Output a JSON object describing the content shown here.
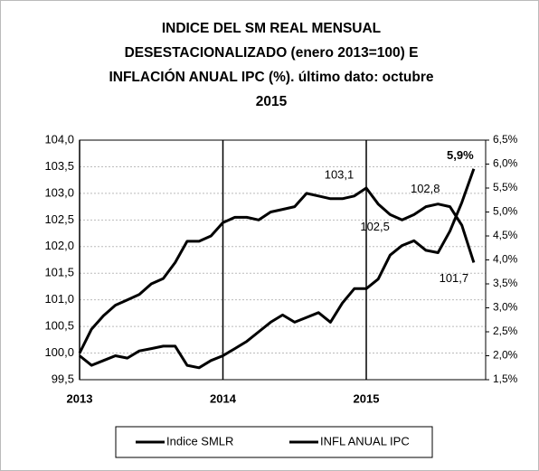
{
  "chart_data": {
    "type": "line",
    "title": [
      "INDICE DEL SM REAL MENSUAL",
      "DESESTACIONALIZADO (enero 2013=100) E",
      "INFLACIÓN ANUAL IPC (%). último dato: octubre",
      "2015"
    ],
    "categories": [
      "2013",
      null,
      null,
      null,
      null,
      null,
      null,
      null,
      null,
      null,
      null,
      null,
      "2014",
      null,
      null,
      null,
      null,
      null,
      null,
      null,
      null,
      null,
      null,
      null,
      "2015",
      null,
      null,
      null,
      null,
      null,
      null,
      null,
      null,
      null
    ],
    "series": [
      {
        "name": "Indice SMLR",
        "color": "#000000",
        "values": [
          100.0,
          100.45,
          100.7,
          100.9,
          101.0,
          101.1,
          101.3,
          101.4,
          101.7,
          102.1,
          102.1,
          102.2,
          102.45,
          102.55,
          102.55,
          102.5,
          102.65,
          102.7,
          102.75,
          103.0,
          102.95,
          102.9,
          102.9,
          102.95,
          103.1,
          102.8,
          102.6,
          102.5,
          102.6,
          102.75,
          102.8,
          102.75,
          102.4,
          101.7
        ],
        "value_labels": [
          null,
          null,
          null,
          null,
          null,
          null,
          null,
          null,
          null,
          null,
          null,
          null,
          null,
          null,
          null,
          null,
          null,
          null,
          null,
          null,
          null,
          null,
          null,
          null,
          "103,1",
          null,
          null,
          "102,5",
          null,
          null,
          "102,8",
          null,
          null,
          "101,7"
        ]
      },
      {
        "name": "INFL ANUAL IPC",
        "color": "#000000",
        "axis": "y2",
        "values": [
          2.0,
          1.8,
          1.9,
          2.0,
          1.95,
          2.1,
          2.15,
          2.2,
          2.2,
          1.8,
          1.75,
          1.9,
          2.0,
          2.15,
          2.3,
          2.5,
          2.7,
          2.85,
          2.7,
          2.8,
          2.9,
          2.7,
          3.1,
          3.4,
          3.4,
          3.6,
          4.1,
          4.3,
          4.4,
          4.2,
          4.15,
          4.6,
          5.2,
          5.9
        ],
        "value_labels": [
          null,
          null,
          null,
          null,
          null,
          null,
          null,
          null,
          null,
          null,
          null,
          null,
          null,
          null,
          null,
          null,
          null,
          null,
          null,
          null,
          null,
          null,
          null,
          null,
          null,
          null,
          null,
          null,
          null,
          null,
          null,
          null,
          null,
          "5,9%"
        ]
      }
    ],
    "ylim": [
      99.5,
      104.0
    ],
    "yticks": [
      {
        "value": 99.5,
        "label": "99,5"
      },
      {
        "value": 100.0,
        "label": "100,0"
      },
      {
        "value": 100.5,
        "label": "100,5"
      },
      {
        "value": 101.0,
        "label": "101,0"
      },
      {
        "value": 101.5,
        "label": "101,5"
      },
      {
        "value": 102.0,
        "label": "102,0"
      },
      {
        "value": 102.5,
        "label": "102,5"
      },
      {
        "value": 103.0,
        "label": "103,0"
      },
      {
        "value": 103.5,
        "label": "103,5"
      },
      {
        "value": 104.0,
        "label": "104,0"
      }
    ],
    "y2lim": [
      1.5,
      6.5
    ],
    "y2ticks": [
      {
        "value": 1.5,
        "label": "1,5%"
      },
      {
        "value": 2.0,
        "label": "2,0%"
      },
      {
        "value": 2.5,
        "label": "2,5%"
      },
      {
        "value": 3.0,
        "label": "3,0%"
      },
      {
        "value": 3.5,
        "label": "3,5%"
      },
      {
        "value": 4.0,
        "label": "4,0%"
      },
      {
        "value": 4.5,
        "label": "4,5%"
      },
      {
        "value": 5.0,
        "label": "5,0%"
      },
      {
        "value": 5.5,
        "label": "5,5%"
      },
      {
        "value": 6.0,
        "label": "6,0%"
      },
      {
        "value": 6.5,
        "label": "6,5%"
      }
    ],
    "grid": true,
    "legend": "bottom"
  }
}
